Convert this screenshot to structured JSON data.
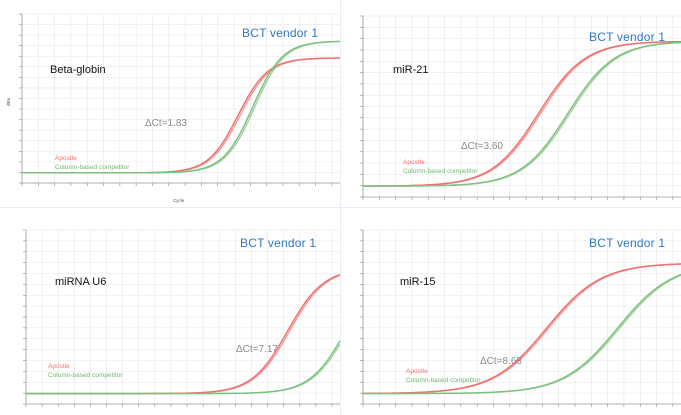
{
  "chart_data": [
    {
      "type": "line",
      "gene_label": "Beta-globin",
      "vendor_label": "BCT  vendor  1",
      "delta_ct_label": "ΔCt=1.83",
      "legend": [
        "Apostle",
        "Column-based   competitor"
      ],
      "xlabel": "Cycle",
      "ylabel": "dRn",
      "xlim": [
        1,
        40
      ],
      "ylim": [
        0,
        1
      ],
      "series": [
        {
          "name": "Apostle",
          "color": "#ef6f6f",
          "ct": 27.5,
          "plateau": 0.68,
          "k": 0.55
        },
        {
          "name": "Column-based   competitor",
          "color": "#7cc07c",
          "ct": 29.3,
          "plateau": 0.78,
          "k": 0.55
        }
      ]
    },
    {
      "type": "line",
      "gene_label": "miR-21",
      "vendor_label": "BCT  vendor  1",
      "delta_ct_label": "ΔCt=3.60",
      "legend": [
        "Apostle",
        "Column-based   competitor"
      ],
      "xlabel": "",
      "ylabel": "",
      "xlim": [
        1,
        40
      ],
      "ylim": [
        0,
        1
      ],
      "series": [
        {
          "name": "Apostle",
          "color": "#ef6f6f",
          "ct": 22.5,
          "plateau": 0.8,
          "k": 0.35
        },
        {
          "name": "Column-based   competitor",
          "color": "#7cc07c",
          "ct": 26.1,
          "plateau": 0.8,
          "k": 0.35
        }
      ]
    },
    {
      "type": "line",
      "gene_label": "miRNA U6",
      "vendor_label": "BCT  vendor  1",
      "delta_ct_label": "ΔCt=7.17",
      "legend": [
        "Apostle",
        "Column-based   competitor"
      ],
      "xlabel": "",
      "ylabel": "",
      "xlim": [
        1,
        40
      ],
      "ylim": [
        0,
        1
      ],
      "series": [
        {
          "name": "Apostle",
          "color": "#ef6f6f",
          "ct": 33.5,
          "plateau": 0.72,
          "k": 0.45
        },
        {
          "name": "Column-based   competitor",
          "color": "#7cc07c",
          "ct": 40.7,
          "plateau": 0.72,
          "k": 0.45
        }
      ]
    },
    {
      "type": "line",
      "gene_label": "miR-15",
      "vendor_label": "BCT  vendor  1",
      "delta_ct_label": "ΔCt=8.68",
      "legend": [
        "Apostle",
        "Column-based   competitor"
      ],
      "xlabel": "",
      "ylabel": "",
      "xlim": [
        1,
        40
      ],
      "ylim": [
        0,
        1
      ],
      "series": [
        {
          "name": "Apostle",
          "color": "#ef6f6f",
          "ct": 23.5,
          "plateau": 0.75,
          "k": 0.3
        },
        {
          "name": "Column-based   competitor",
          "color": "#7cc07c",
          "ct": 32.2,
          "plateau": 0.75,
          "k": 0.3
        }
      ]
    }
  ]
}
